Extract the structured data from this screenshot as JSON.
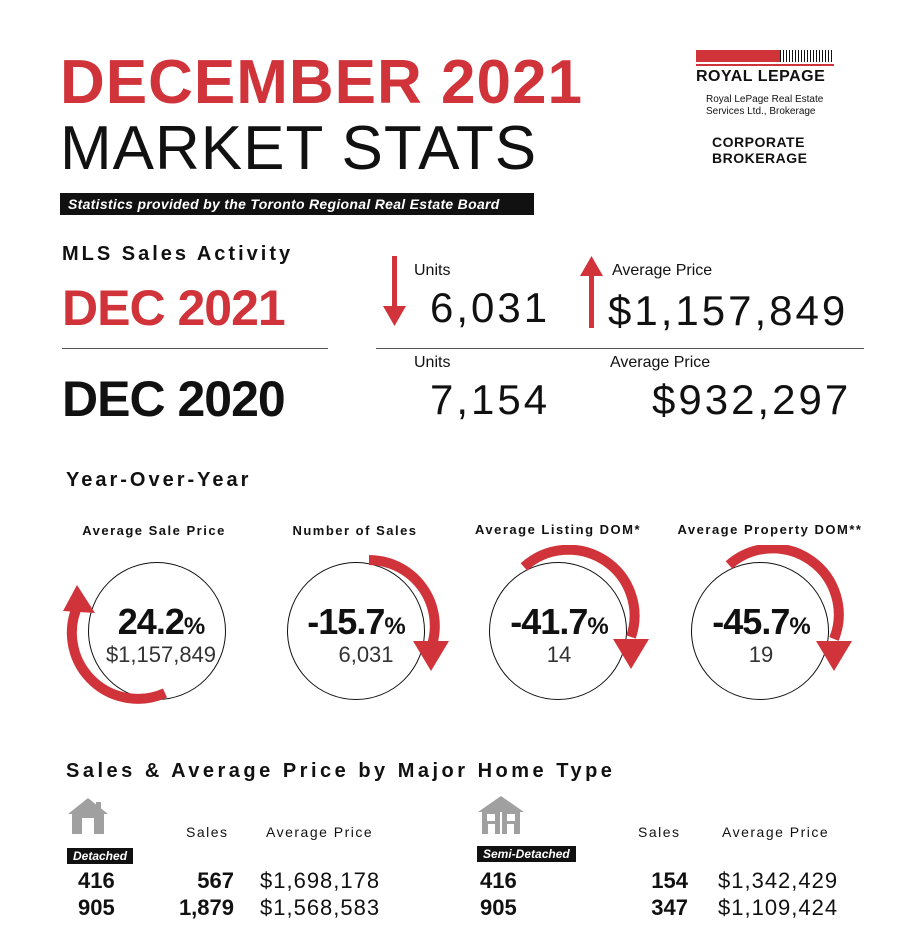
{
  "header": {
    "title_line1": "DECEMBER 2021",
    "title_line2": "MARKET STATS",
    "banner": "Statistics provided by the Toronto Regional Real Estate Board"
  },
  "logo": {
    "name": "ROYAL LEPAGE",
    "subtitle_line1": "Royal LePage Real Estate",
    "subtitle_line2": "Services Ltd., Brokerage",
    "corporate_line1": "CORPORATE",
    "corporate_line2": "BROKERAGE"
  },
  "mls": {
    "heading": "MLS Sales Activity",
    "current": {
      "date": "DEC 2021",
      "units_label": "Units",
      "units": "6,031",
      "units_trend": "down",
      "price_label": "Average Price",
      "price": "$1,157,849",
      "price_trend": "up"
    },
    "previous": {
      "date": "DEC 2020",
      "units_label": "Units",
      "units": "7,154",
      "price_label": "Average Price",
      "price": "$932,297"
    }
  },
  "yoy": {
    "heading": "Year-Over-Year",
    "metrics": [
      {
        "title": "Average Sale Price",
        "pct": "24.2",
        "pct_sign": "%",
        "value": "$1,157,849",
        "direction": "up"
      },
      {
        "title": "Number of Sales",
        "pct": "-15.7",
        "pct_sign": "%",
        "value": "6,031",
        "direction": "down"
      },
      {
        "title": "Average Listing DOM*",
        "pct": "-41.7",
        "pct_sign": "%",
        "value": "14",
        "direction": "down"
      },
      {
        "title": "Average Property DOM**",
        "pct": "-45.7",
        "pct_sign": "%",
        "value": "19",
        "direction": "down"
      }
    ]
  },
  "home_types": {
    "heading": "Sales & Average Price by Major Home Type",
    "groups": [
      {
        "type": "Detached",
        "icon": "house-icon",
        "sales_label": "Sales",
        "price_label": "Average Price",
        "rows": [
          {
            "area": "416",
            "sales": "567",
            "price": "$1,698,178"
          },
          {
            "area": "905",
            "sales": "1,879",
            "price": "$1,568,583"
          }
        ]
      },
      {
        "type": "Semi-Detached",
        "icon": "semi-detached-house-icon",
        "sales_label": "Sales",
        "price_label": "Average Price",
        "rows": [
          {
            "area": "416",
            "sales": "154",
            "price": "$1,342,429"
          },
          {
            "area": "905",
            "sales": "347",
            "price": "$1,109,424"
          }
        ]
      }
    ]
  },
  "colors": {
    "accent": "#d0343a",
    "text": "#111111",
    "banner_bg": "#111111"
  }
}
